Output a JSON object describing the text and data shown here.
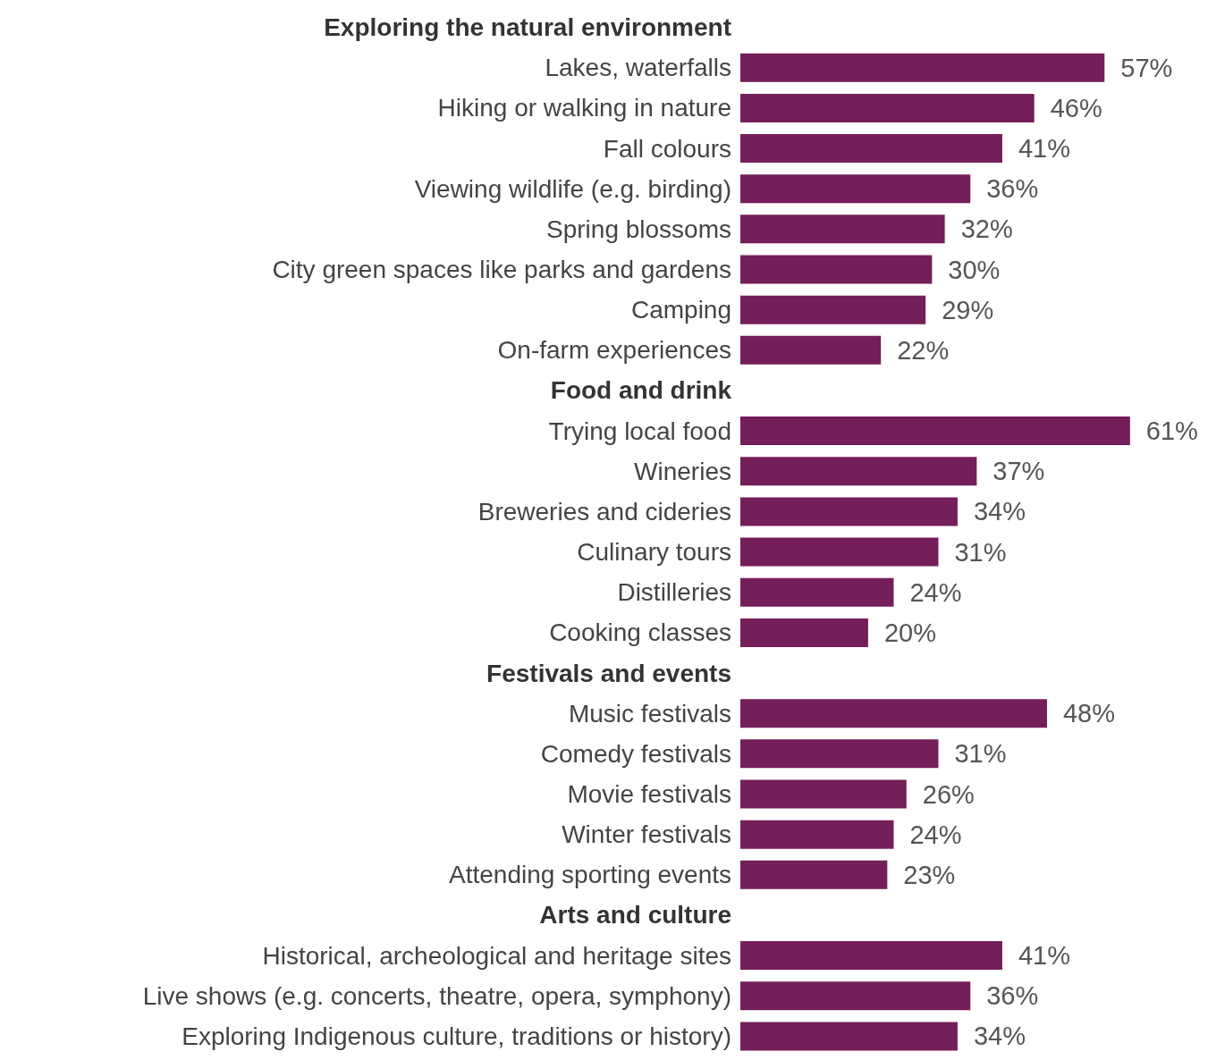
{
  "chart_data": {
    "type": "bar",
    "orientation": "horizontal",
    "categories": [
      "Exploring the natural environment",
      "Lakes, waterfalls",
      "Hiking or walking in nature",
      "Fall colours",
      "Viewing wildlife (e.g. birding)",
      "Spring blossoms",
      "City green spaces like parks and gardens",
      "Camping",
      "On-farm experiences",
      "Food and drink",
      "Trying local food",
      "Wineries",
      "Breweries and cideries",
      "Culinary tours",
      "Distilleries",
      "Cooking classes",
      "Festivals and events",
      "Music festivals",
      "Comedy festivals",
      "Movie festivals",
      "Winter festivals",
      "Attending sporting events",
      "Arts and culture",
      "Historical, archeological and heritage sites",
      "Live shows (e.g. concerts, theatre, opera, symphony)",
      "Exploring Indigenous culture, traditions or history)"
    ],
    "values": [
      null,
      57,
      46,
      41,
      36,
      32,
      30,
      29,
      22,
      null,
      61,
      37,
      34,
      31,
      24,
      20,
      null,
      48,
      31,
      26,
      24,
      23,
      null,
      41,
      36,
      34
    ],
    "value_labels": [
      null,
      "57%",
      "46%",
      "41%",
      "36%",
      "32%",
      "30%",
      "29%",
      "22%",
      null,
      "61%",
      "37%",
      "34%",
      "31%",
      "24%",
      "20%",
      null,
      "48%",
      "31%",
      "26%",
      "24%",
      "23%",
      null,
      "41%",
      "36%",
      "34%"
    ],
    "color": "#741e5a",
    "grid": false
  }
}
